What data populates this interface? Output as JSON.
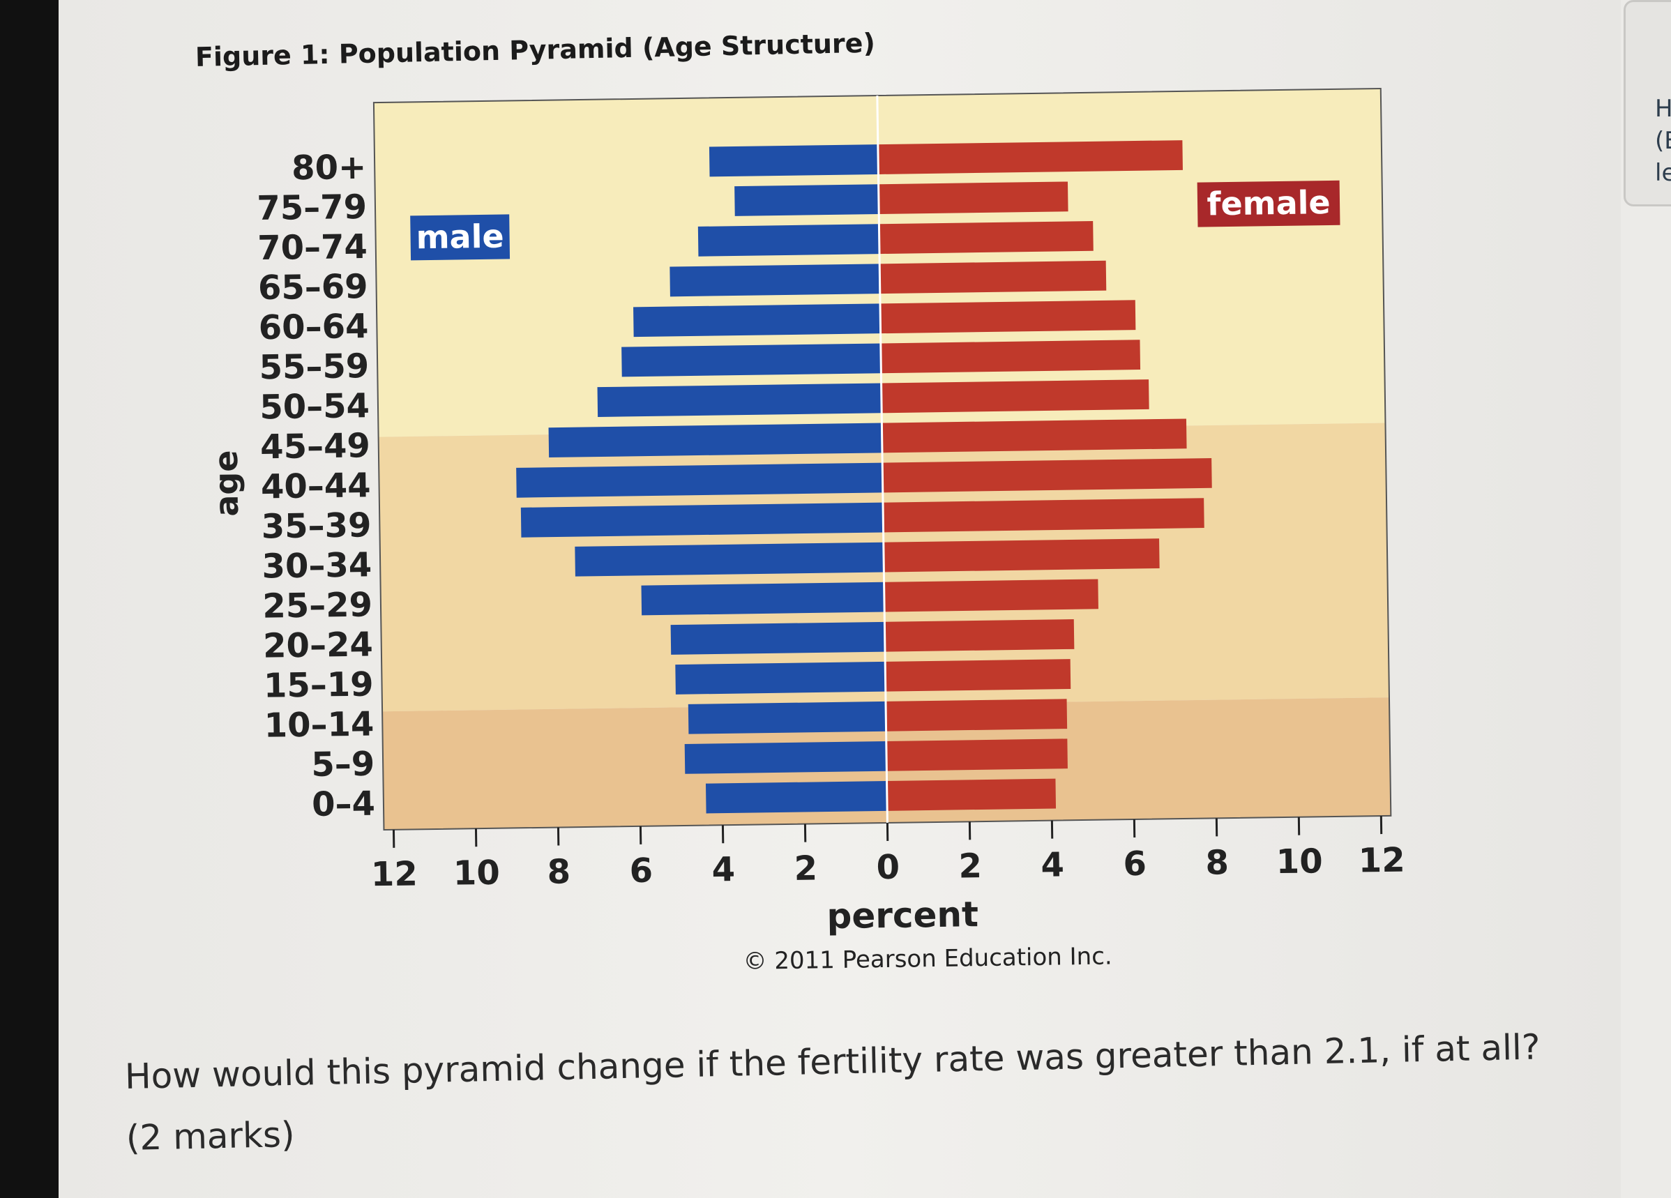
{
  "title": "Figure 1: Population Pyramid (Age Structure)",
  "chart_data": {
    "type": "bar",
    "orientation": "horizontal-pyramid",
    "title": "Figure 1: Population Pyramid (Age Structure)",
    "xlabel": "percent",
    "ylabel": "age",
    "xlim": [
      -12,
      12
    ],
    "x_tick_labels": [
      "12",
      "10",
      "8",
      "6",
      "4",
      "2",
      "0",
      "2",
      "4",
      "6",
      "8",
      "10",
      "12"
    ],
    "categories": [
      "80+",
      "75–79",
      "70–74",
      "65–69",
      "60–64",
      "55–59",
      "50–54",
      "45–49",
      "40–44",
      "35–39",
      "30–34",
      "25–29",
      "20–24",
      "15–19",
      "10–14",
      "5–9",
      "0–4"
    ],
    "series": [
      {
        "name": "male",
        "color": "#1f4fa8",
        "values": [
          4.1,
          3.5,
          4.4,
          5.1,
          6.0,
          6.3,
          6.9,
          8.1,
          8.9,
          8.8,
          7.5,
          5.9,
          5.2,
          5.1,
          4.8,
          4.9,
          4.4
        ]
      },
      {
        "name": "female",
        "color": "#c0392b",
        "values": [
          7.4,
          4.6,
          5.2,
          5.5,
          6.2,
          6.3,
          6.5,
          7.4,
          8.0,
          7.8,
          6.7,
          5.2,
          4.6,
          4.5,
          4.4,
          4.4,
          4.1
        ]
      }
    ],
    "background_colors": [
      "#f7ecbb",
      "#f1d7a3",
      "#e9c290"
    ],
    "grid": false,
    "copyright": "© 2011 Pearson Education Inc."
  },
  "question": "How would this pyramid change if the fertility rate was greater than 2.1, if at all? (2 marks)",
  "side_panel": [
    "H",
    "(E",
    "le"
  ]
}
